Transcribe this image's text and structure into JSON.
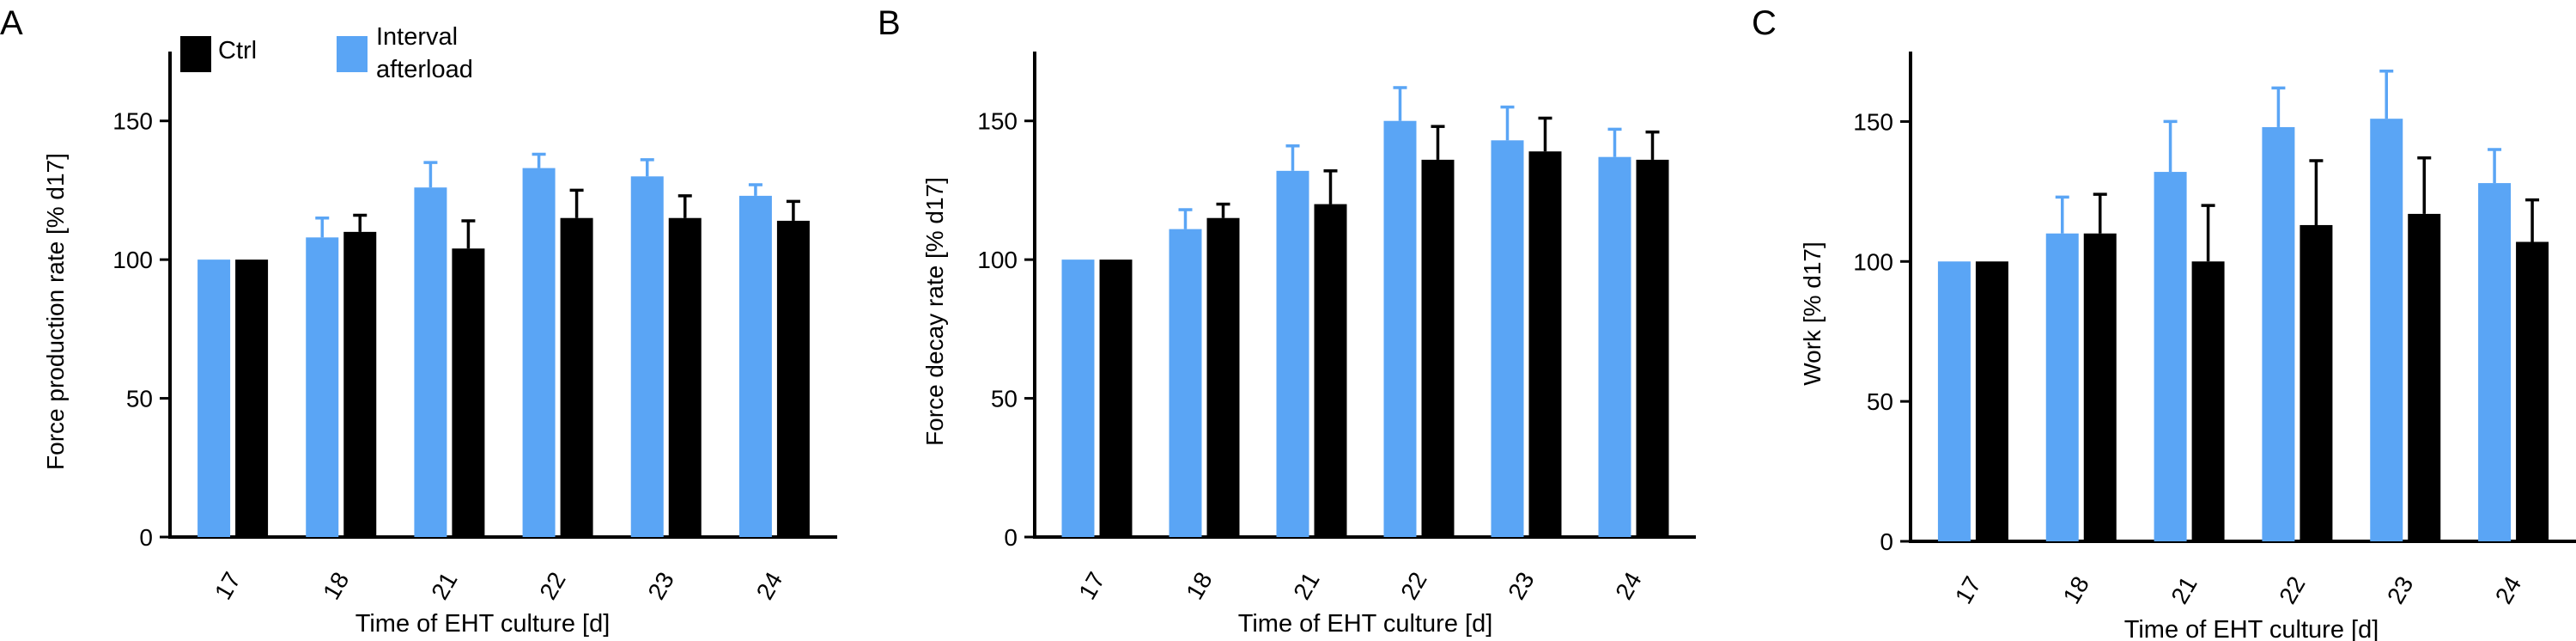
{
  "legend": {
    "items": [
      {
        "label_lines": [
          "Ctrl"
        ],
        "color": "#000000"
      },
      {
        "label_lines": [
          "Interval",
          "afterload"
        ],
        "color": "#5aa5f5"
      }
    ]
  },
  "chart_data": [
    {
      "type": "bar",
      "panel_label": "A",
      "xlabel": "Time of EHT culture [d]",
      "ylabel": "Force production rate [% d17]",
      "categories": [
        "17",
        "18",
        "21",
        "22",
        "23",
        "24"
      ],
      "ylim": [
        0,
        175
      ],
      "yticks": [
        0,
        50,
        100,
        150
      ],
      "series": [
        {
          "name": "Interval afterload",
          "color": "#5aa5f5",
          "values": [
            100,
            108,
            126,
            133,
            130,
            123
          ],
          "errors": [
            0,
            7,
            9,
            5,
            6,
            4
          ]
        },
        {
          "name": "Ctrl",
          "color": "#000000",
          "values": [
            100,
            110,
            104,
            115,
            115,
            114
          ],
          "errors": [
            0,
            6,
            10,
            10,
            8,
            7
          ]
        }
      ]
    },
    {
      "type": "bar",
      "panel_label": "B",
      "xlabel": "Time of EHT culture [d]",
      "ylabel": "Force decay rate [% d17]",
      "categories": [
        "17",
        "18",
        "21",
        "22",
        "23",
        "24"
      ],
      "ylim": [
        0,
        175
      ],
      "yticks": [
        0,
        50,
        100,
        150
      ],
      "series": [
        {
          "name": "Interval afterload",
          "color": "#5aa5f5",
          "values": [
            100,
            111,
            132,
            150,
            143,
            137
          ],
          "errors": [
            0,
            7,
            9,
            12,
            12,
            10
          ]
        },
        {
          "name": "Ctrl",
          "color": "#000000",
          "values": [
            100,
            115,
            120,
            136,
            139,
            136
          ],
          "errors": [
            0,
            5,
            12,
            12,
            12,
            10
          ]
        }
      ]
    },
    {
      "type": "bar",
      "panel_label": "C",
      "xlabel": "Time of EHT culture [d]",
      "ylabel": "Work [% d17]",
      "categories": [
        "17",
        "18",
        "21",
        "22",
        "23",
        "24"
      ],
      "ylim": [
        0,
        175
      ],
      "yticks": [
        0,
        50,
        100,
        150
      ],
      "series": [
        {
          "name": "Interval afterload",
          "color": "#5aa5f5",
          "values": [
            100,
            110,
            132,
            148,
            151,
            128
          ],
          "errors": [
            0,
            13,
            18,
            14,
            17,
            12
          ]
        },
        {
          "name": "Ctrl",
          "color": "#000000",
          "values": [
            100,
            110,
            100,
            113,
            117,
            107
          ],
          "errors": [
            0,
            14,
            20,
            23,
            20,
            15
          ]
        }
      ]
    }
  ]
}
